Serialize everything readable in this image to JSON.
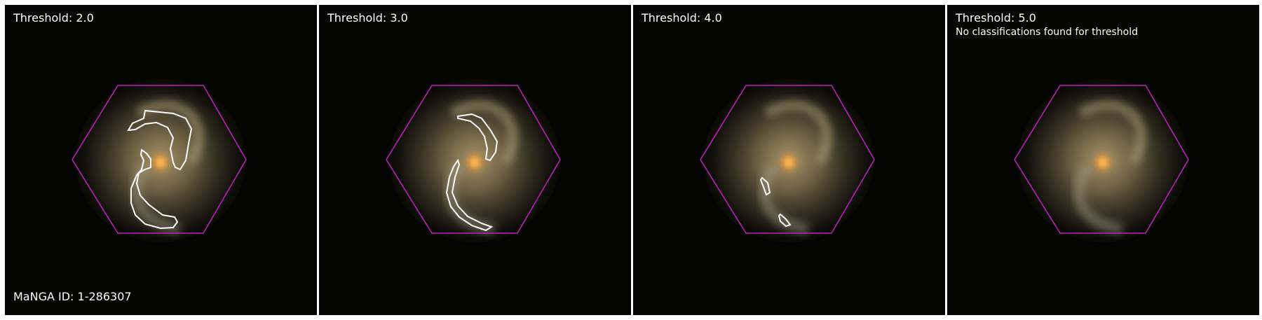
{
  "panels": [
    {
      "title": "Threshold: 2.0",
      "note": ""
    },
    {
      "title": "Threshold: 3.0",
      "note": ""
    },
    {
      "title": "Threshold: 4.0",
      "note": ""
    },
    {
      "title": "Threshold: 5.0",
      "note": "No classifications found for threshold"
    }
  ],
  "manga_id_label": "MaNGA ID: 1-286307",
  "colors": {
    "panel_background": "#050504",
    "hexagon_outline": "#c020c0",
    "contour": "#ffffff",
    "galaxy_core": "#f0a040",
    "galaxy_disk": "#8a7a55",
    "text": "#ffffff"
  }
}
